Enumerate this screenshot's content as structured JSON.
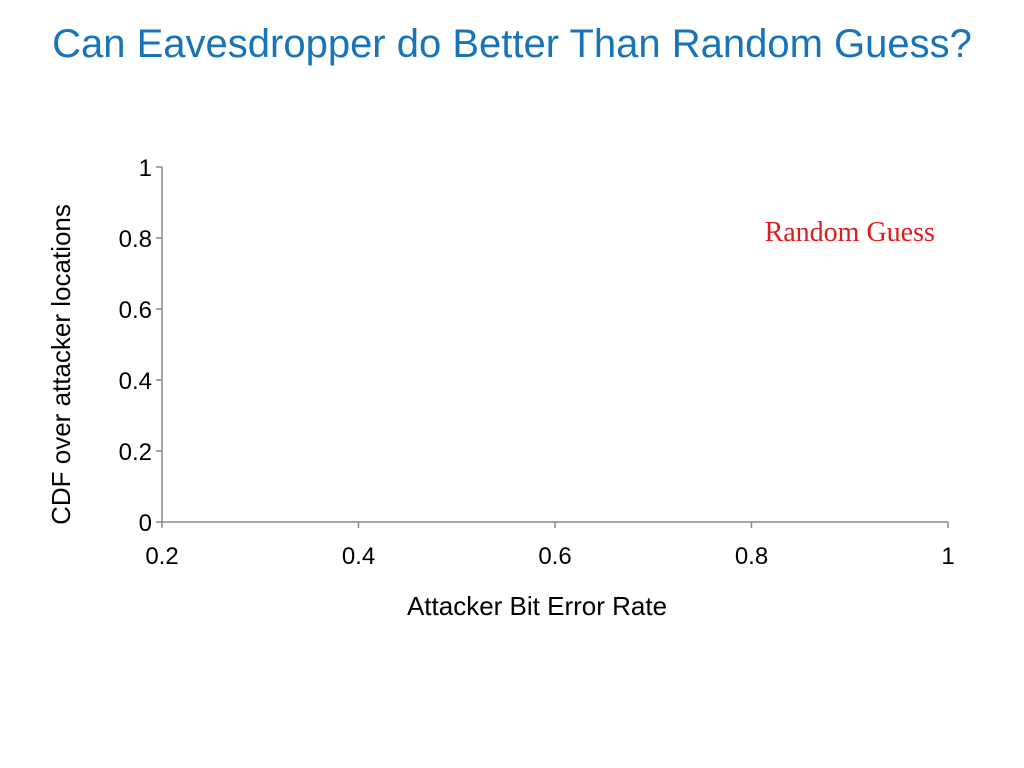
{
  "slide": {
    "title": "Can Eavesdropper do Better Than Random Guess?"
  },
  "chart_data": {
    "type": "line",
    "title": "",
    "xlabel": "Attacker Bit Error Rate",
    "ylabel": "CDF over attacker  locations",
    "xlim": [
      0.2,
      1
    ],
    "ylim": [
      0,
      1
    ],
    "x_ticks": [
      {
        "value": 0.2,
        "label": "0.2"
      },
      {
        "value": 0.4,
        "label": "0.4"
      },
      {
        "value": 0.6,
        "label": "0.6"
      },
      {
        "value": 0.8,
        "label": "0.8"
      },
      {
        "value": 1,
        "label": "1"
      }
    ],
    "y_ticks": [
      {
        "value": 0,
        "label": "0"
      },
      {
        "value": 0.2,
        "label": "0.2"
      },
      {
        "value": 0.4,
        "label": "0.4"
      },
      {
        "value": 0.6,
        "label": "0.6"
      },
      {
        "value": 0.8,
        "label": "0.8"
      },
      {
        "value": 1,
        "label": "1"
      }
    ],
    "series": [],
    "grid": false,
    "legend": "none",
    "annotations": [
      {
        "text": "Random Guess",
        "x": 0.9,
        "y": 0.82,
        "color": "#e01b1b"
      }
    ],
    "axis_color": "#888888"
  }
}
